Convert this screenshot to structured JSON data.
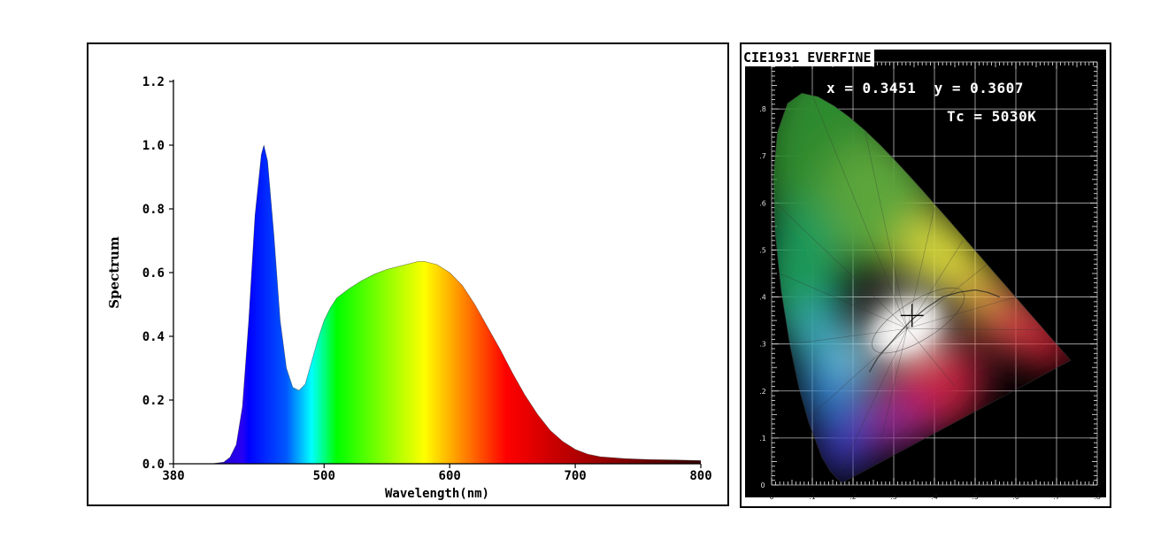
{
  "chart_data": [
    {
      "type": "area",
      "title": "",
      "xlabel": "Wavelength(nm)",
      "ylabel": "Spectrum",
      "xlim": [
        380,
        800
      ],
      "ylim": [
        0,
        1.2
      ],
      "x_ticks": [
        380,
        500,
        600,
        700,
        800
      ],
      "y_ticks": [
        "0.0",
        "0.2",
        "0.4",
        "0.6",
        "0.8",
        "1.0",
        "1.2"
      ],
      "grid": false,
      "fill": "visible-spectrum colors by wavelength",
      "series": [
        {
          "x": [
            380,
            400,
            410,
            420,
            425,
            430,
            435,
            440,
            445,
            450,
            452,
            455,
            460,
            465,
            470,
            475,
            480,
            485,
            490,
            495,
            500,
            505,
            510,
            515,
            520,
            530,
            540,
            550,
            560,
            570,
            575,
            580,
            590,
            600,
            610,
            620,
            630,
            640,
            650,
            660,
            670,
            680,
            690,
            700,
            710,
            720,
            740,
            760,
            780,
            800
          ],
          "y": [
            0.0,
            0.0,
            0.0,
            0.005,
            0.02,
            0.06,
            0.18,
            0.45,
            0.78,
            0.97,
            1.0,
            0.95,
            0.72,
            0.45,
            0.3,
            0.24,
            0.23,
            0.25,
            0.32,
            0.39,
            0.45,
            0.49,
            0.52,
            0.535,
            0.55,
            0.575,
            0.595,
            0.61,
            0.62,
            0.63,
            0.635,
            0.635,
            0.625,
            0.6,
            0.56,
            0.5,
            0.43,
            0.36,
            0.285,
            0.215,
            0.155,
            0.105,
            0.07,
            0.045,
            0.03,
            0.022,
            0.016,
            0.013,
            0.012,
            0.01
          ]
        }
      ]
    },
    {
      "type": "scatter",
      "title": "CIE1931 EVERFINE",
      "x": [
        0.3451
      ],
      "y": [
        0.3607
      ],
      "xlim": [
        0,
        0.8
      ],
      "ylim": [
        0,
        0.9
      ],
      "x_tick_labels": [
        "0",
        ".1",
        ".2",
        ".3",
        ".4",
        ".5",
        ".6",
        ".7",
        ".8"
      ],
      "y_tick_labels": [
        "0",
        ".1",
        ".2",
        ".3",
        ".4",
        ".5",
        ".6",
        ".7",
        ".8"
      ],
      "grid": true,
      "background": "black",
      "marker": "plus"
    }
  ],
  "cie_panel": {
    "title": "CIE1931 EVERFINE",
    "coords_text": "x = 0.3451  y = 0.3607",
    "tc_text": "Tc = 5030K"
  }
}
